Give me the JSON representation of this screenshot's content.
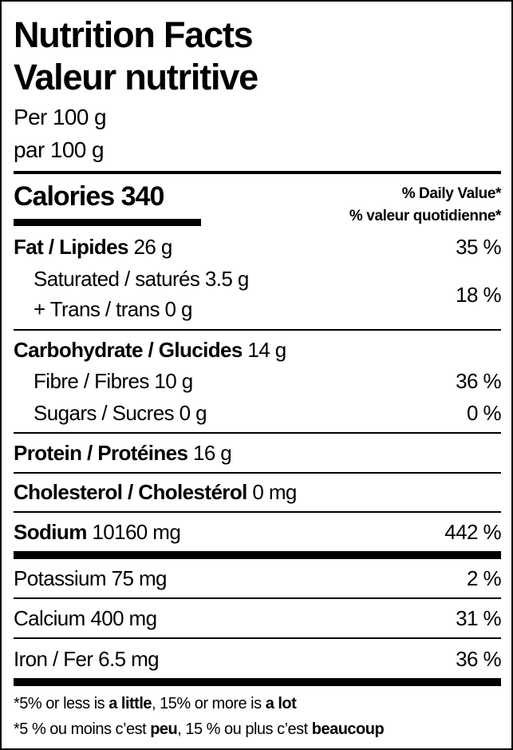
{
  "title_en": "Nutrition Facts",
  "title_fr": "Valeur nutritive",
  "serving_en": "Per 100 g",
  "serving_fr": "par 100 g",
  "calories": {
    "label": "Calories",
    "value": "340"
  },
  "daily_value_header": {
    "en": "% Daily Value*",
    "fr": "% valeur quotidienne*"
  },
  "nutrients": {
    "fat": {
      "label": "Fat / Lipides",
      "amount": "26 g",
      "dv": "35 %"
    },
    "saturated": {
      "label": "Saturated / saturés",
      "amount": "3.5 g"
    },
    "trans": {
      "label": "+ Trans / trans",
      "amount": "0 g"
    },
    "sat_trans_dv": "18 %",
    "carbohydrate": {
      "label": "Carbohydrate / Glucides",
      "amount": "14 g"
    },
    "fibre": {
      "label": "Fibre / Fibres",
      "amount": "10 g",
      "dv": "36 %"
    },
    "sugars": {
      "label": "Sugars / Sucres",
      "amount": "0 g",
      "dv": "0 %"
    },
    "protein": {
      "label": "Protein / Protéines",
      "amount": "16 g"
    },
    "cholesterol": {
      "label": "Cholesterol / Cholestérol",
      "amount": "0 mg"
    },
    "sodium": {
      "label": "Sodium",
      "amount": "10160 mg",
      "dv": "442 %"
    },
    "potassium": {
      "label": "Potassium",
      "amount": "75 mg",
      "dv": "2 %"
    },
    "calcium": {
      "label": "Calcium",
      "amount": "400 mg",
      "dv": "31 %"
    },
    "iron": {
      "label": "Iron / Fer",
      "amount": "6.5 mg",
      "dv": "36 %"
    }
  },
  "footnote_en": {
    "p1": "*5% or less is ",
    "b1": "a little",
    "p2": ", 15% or more is ",
    "b2": "a lot"
  },
  "footnote_fr": {
    "p1": "*5 % ou moins c’est ",
    "b1": "peu",
    "p2": ", 15 % ou plus c’est ",
    "b2": "beaucoup"
  }
}
